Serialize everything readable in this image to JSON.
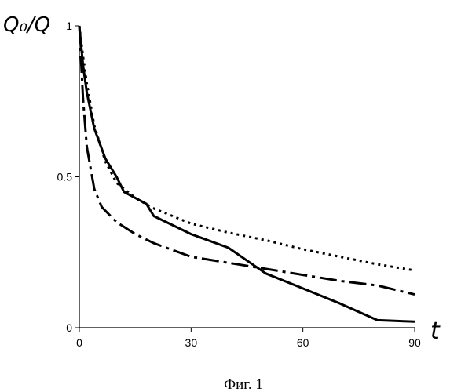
{
  "chart_data": {
    "type": "line",
    "title": "",
    "ylabel": "Q₀/Q",
    "xlabel": "t",
    "caption": "Фиг. 1",
    "xlim": [
      0,
      90
    ],
    "ylim": [
      0,
      1
    ],
    "xticks": [
      0,
      30,
      60,
      90
    ],
    "xtick_labels": [
      "0",
      "30",
      "60",
      "90"
    ],
    "yticks": [
      0,
      0.5,
      1
    ],
    "ytick_labels": [
      "0",
      "0.5",
      "1"
    ],
    "grid": false,
    "series": [
      {
        "style": "solid",
        "x": [
          0,
          1,
          2,
          4,
          7,
          10,
          12,
          15,
          18,
          20,
          30,
          40,
          50,
          60,
          70,
          80,
          90
        ],
        "y": [
          1.0,
          0.87,
          0.78,
          0.66,
          0.56,
          0.5,
          0.45,
          0.43,
          0.41,
          0.37,
          0.31,
          0.265,
          0.18,
          0.13,
          0.08,
          0.025,
          0.02
        ]
      },
      {
        "style": "dotted",
        "x": [
          0,
          1,
          2,
          4,
          7,
          10,
          15,
          20,
          30,
          40,
          50,
          60,
          70,
          80,
          90
        ],
        "y": [
          1.0,
          0.9,
          0.81,
          0.67,
          0.55,
          0.48,
          0.43,
          0.395,
          0.345,
          0.315,
          0.29,
          0.26,
          0.235,
          0.21,
          0.19
        ]
      },
      {
        "style": "dash-dot",
        "x": [
          0,
          1,
          2,
          4,
          6,
          10,
          15,
          20,
          30,
          40,
          50,
          60,
          70,
          80,
          90
        ],
        "y": [
          1.0,
          0.76,
          0.6,
          0.46,
          0.4,
          0.35,
          0.31,
          0.28,
          0.235,
          0.215,
          0.195,
          0.175,
          0.155,
          0.14,
          0.11
        ]
      }
    ]
  }
}
